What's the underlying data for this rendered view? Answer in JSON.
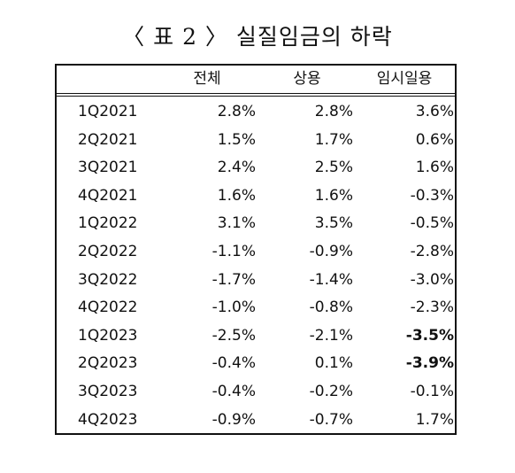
{
  "title": "〈 표 2 〉 실질임금의 하락",
  "table": {
    "columns": [
      "전체",
      "상용",
      "임시일용"
    ],
    "rows": [
      [
        "1Q2021",
        "2.8%",
        "2.8%",
        "3.6%"
      ],
      [
        "2Q2021",
        "1.5%",
        "1.7%",
        "0.6%"
      ],
      [
        "3Q2021",
        "2.4%",
        "2.5%",
        "1.6%"
      ],
      [
        "4Q2021",
        "1.6%",
        "1.6%",
        "-0.3%"
      ],
      [
        "1Q2022",
        "3.1%",
        "3.5%",
        "-0.5%"
      ],
      [
        "2Q2022",
        "-1.1%",
        "-0.9%",
        "-2.8%"
      ],
      [
        "3Q2022",
        "-1.7%",
        "-1.4%",
        "-3.0%"
      ],
      [
        "4Q2022",
        "-1.0%",
        "-0.8%",
        "-2.3%"
      ],
      [
        "1Q2023",
        "-2.5%",
        "-2.1%",
        "-3.5%"
      ],
      [
        "2Q2023",
        "-0.4%",
        "0.1%",
        "-3.9%"
      ],
      [
        "3Q2023",
        "-0.4%",
        "-0.2%",
        "-0.1%"
      ],
      [
        "4Q2023",
        "-0.9%",
        "-0.7%",
        "1.7%"
      ]
    ],
    "bold_cells": [
      [
        8,
        3
      ],
      [
        9,
        3
      ]
    ]
  }
}
